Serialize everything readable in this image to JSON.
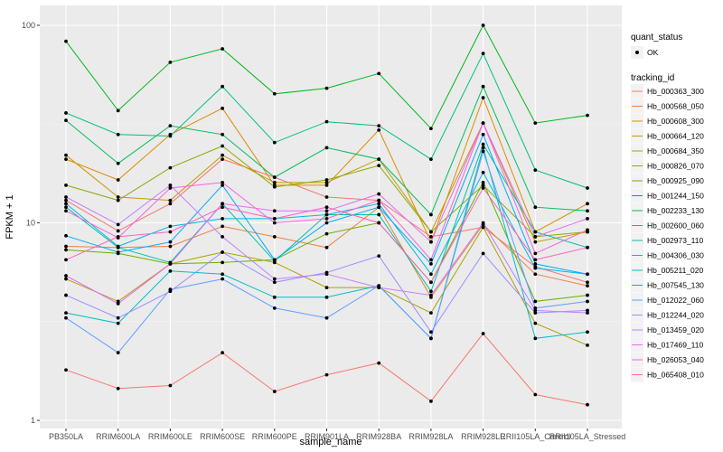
{
  "chart_data": {
    "type": "line",
    "xlabel": "sample_name",
    "ylabel": "FPKM + 1",
    "yscale": "log10",
    "ylim": [
      1,
      100
    ],
    "y_ticks": [
      1,
      10,
      100
    ],
    "y_tick_labels": [
      "1",
      "10",
      "100"
    ],
    "grid": true,
    "legend_position": "right",
    "background": "#ebebeb",
    "categories": [
      "PB350LA",
      "RRIM600LA",
      "RRIM600LE",
      "RRIM600SE",
      "RRIM600PE",
      "RRIM901LA",
      "RRIM928BA",
      "RRIM928LA",
      "RRIM928LE",
      "RRII105LA_Control",
      "RRII105LA_Stressed"
    ],
    "shape_legend": {
      "title": "quant_status",
      "items": [
        {
          "label": "OK",
          "symbol": "circle"
        }
      ]
    },
    "color_legend_title": "tracking_id",
    "series": [
      {
        "name": "Hb_000363_300",
        "color": "#f8766d",
        "values": [
          13.0,
          9.1,
          12.5,
          21.0,
          17.0,
          13.5,
          13.0,
          8.5,
          9.5,
          6.0,
          5.0
        ]
      },
      {
        "name": "Hb_000568_050",
        "color": "#ec823c",
        "values": [
          7.6,
          7.5,
          7.6,
          9.6,
          8.5,
          7.5,
          12.0,
          4.2,
          9.8,
          5.5,
          4.8
        ]
      },
      {
        "name": "Hb_000608_300",
        "color": "#dc8e00",
        "values": [
          21.0,
          16.5,
          28.0,
          38.0,
          15.5,
          15.5,
          29.5,
          8.0,
          43.0,
          9.0,
          12.5
        ]
      },
      {
        "name": "Hb_000664_120",
        "color": "#c79800",
        "values": [
          22.0,
          13.5,
          13.0,
          22.0,
          16.0,
          16.0,
          21.0,
          9.0,
          32.0,
          8.0,
          9.0
        ]
      },
      {
        "name": "Hb_000684_350",
        "color": "#ada100",
        "values": [
          5.2,
          4.0,
          6.2,
          7.1,
          6.3,
          4.7,
          4.7,
          3.5,
          9.5,
          3.1,
          2.4
        ]
      },
      {
        "name": "Hb_000826_070",
        "color": "#8dab00",
        "values": [
          15.5,
          13.0,
          19.0,
          24.5,
          15.2,
          16.5,
          19.5,
          9.0,
          15.5,
          8.5,
          9.0
        ]
      },
      {
        "name": "Hb_000925_090",
        "color": "#64b200",
        "values": [
          7.3,
          7.0,
          6.2,
          6.3,
          6.5,
          8.8,
          10.0,
          5.0,
          16.0,
          4.0,
          4.3
        ]
      },
      {
        "name": "Hb_001244_150",
        "color": "#00b81b",
        "values": [
          83.0,
          37.0,
          65.0,
          76.0,
          45.0,
          48.0,
          57.0,
          30.0,
          100.0,
          32.0,
          35.0
        ]
      },
      {
        "name": "Hb_002233_130",
        "color": "#00bd5c",
        "values": [
          33.0,
          20.0,
          31.0,
          28.0,
          17.0,
          24.0,
          21.0,
          11.0,
          49.0,
          12.0,
          11.5
        ]
      },
      {
        "name": "Hb_002600_060",
        "color": "#00c087",
        "values": [
          36.0,
          28.0,
          27.5,
          49.0,
          25.5,
          32.5,
          31.0,
          21.0,
          72.0,
          18.5,
          15.0
        ]
      },
      {
        "name": "Hb_002973_110",
        "color": "#00c1aa",
        "values": [
          12.0,
          7.5,
          6.3,
          12.5,
          6.4,
          11.0,
          11.0,
          4.5,
          25.0,
          9.0,
          7.5
        ]
      },
      {
        "name": "Hb_004306_030",
        "color": "#00bfc4",
        "values": [
          3.5,
          3.1,
          5.7,
          5.5,
          4.2,
          4.2,
          4.8,
          2.6,
          24.0,
          2.6,
          2.8
        ]
      },
      {
        "name": "Hb_005211_020",
        "color": "#00b8e5",
        "values": [
          12.5,
          7.6,
          9.6,
          10.5,
          10.5,
          11.0,
          12.5,
          5.5,
          18.0,
          5.9,
          5.5
        ]
      },
      {
        "name": "Hb_007545_130",
        "color": "#00acfc",
        "values": [
          8.6,
          7.1,
          8.0,
          15.5,
          6.5,
          10.0,
          12.0,
          6.2,
          28.0,
          6.2,
          5.5
        ]
      },
      {
        "name": "Hb_012022_060",
        "color": "#619cff",
        "values": [
          3.3,
          2.2,
          4.6,
          5.2,
          3.7,
          3.3,
          4.8,
          2.6,
          23.0,
          3.7,
          4.0
        ]
      },
      {
        "name": "Hb_012244_020",
        "color": "#9a8eff",
        "values": [
          4.3,
          3.3,
          4.5,
          7.1,
          5.0,
          5.6,
          6.8,
          2.8,
          7.0,
          3.5,
          3.6
        ]
      },
      {
        "name": "Hb_013459_020",
        "color": "#c77cff",
        "values": [
          13.5,
          9.8,
          15.5,
          8.5,
          5.2,
          5.5,
          4.7,
          4.3,
          10.0,
          3.6,
          3.5
        ]
      },
      {
        "name": "Hb_017469_110",
        "color": "#e76bf3",
        "values": [
          5.4,
          3.9,
          6.2,
          12.5,
          11.5,
          11.5,
          14.0,
          8.0,
          32.0,
          8.5,
          10.5
        ]
      },
      {
        "name": "Hb_026053_040",
        "color": "#fa62db",
        "values": [
          11.5,
          8.4,
          15.0,
          16.0,
          10.0,
          10.5,
          13.0,
          6.5,
          32.0,
          7.0,
          9.2
        ]
      },
      {
        "name": "Hb_065408_010",
        "color": "#ff62bc",
        "values": [
          6.5,
          8.5,
          9.0,
          12.0,
          10.5,
          12.0,
          10.0,
          5.0,
          15.0,
          6.5,
          7.5
        ]
      },
      {
        "name": "",
        "color": "#f8766d",
        "values": [
          1.8,
          1.45,
          1.5,
          2.2,
          1.4,
          1.7,
          1.95,
          1.25,
          2.75,
          1.35,
          1.2
        ]
      }
    ]
  }
}
